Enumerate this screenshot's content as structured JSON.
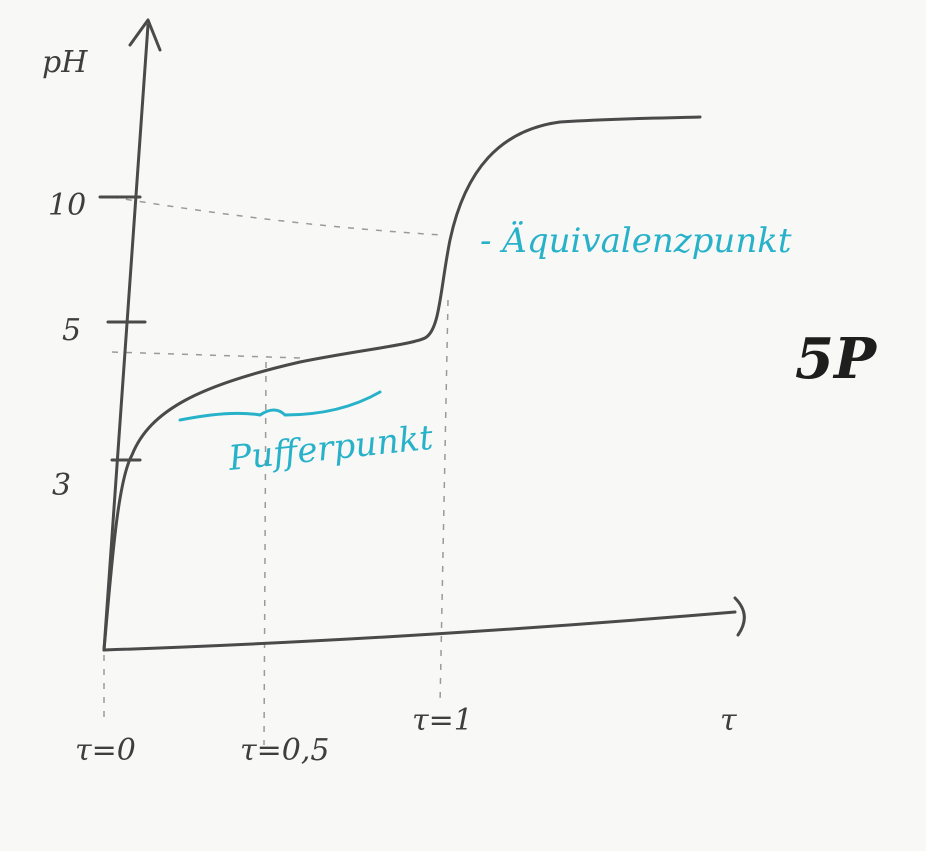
{
  "axes": {
    "y_label": "pH",
    "x_label": "τ",
    "y_ticks": [
      "10",
      "5",
      "3"
    ],
    "x_ticks": [
      "τ=0",
      "τ=0,5",
      "τ=1"
    ]
  },
  "annotations": {
    "equivalence": "- Äquivalenzpunkt",
    "buffer": "Pufferpunkt",
    "score": "5P"
  }
}
